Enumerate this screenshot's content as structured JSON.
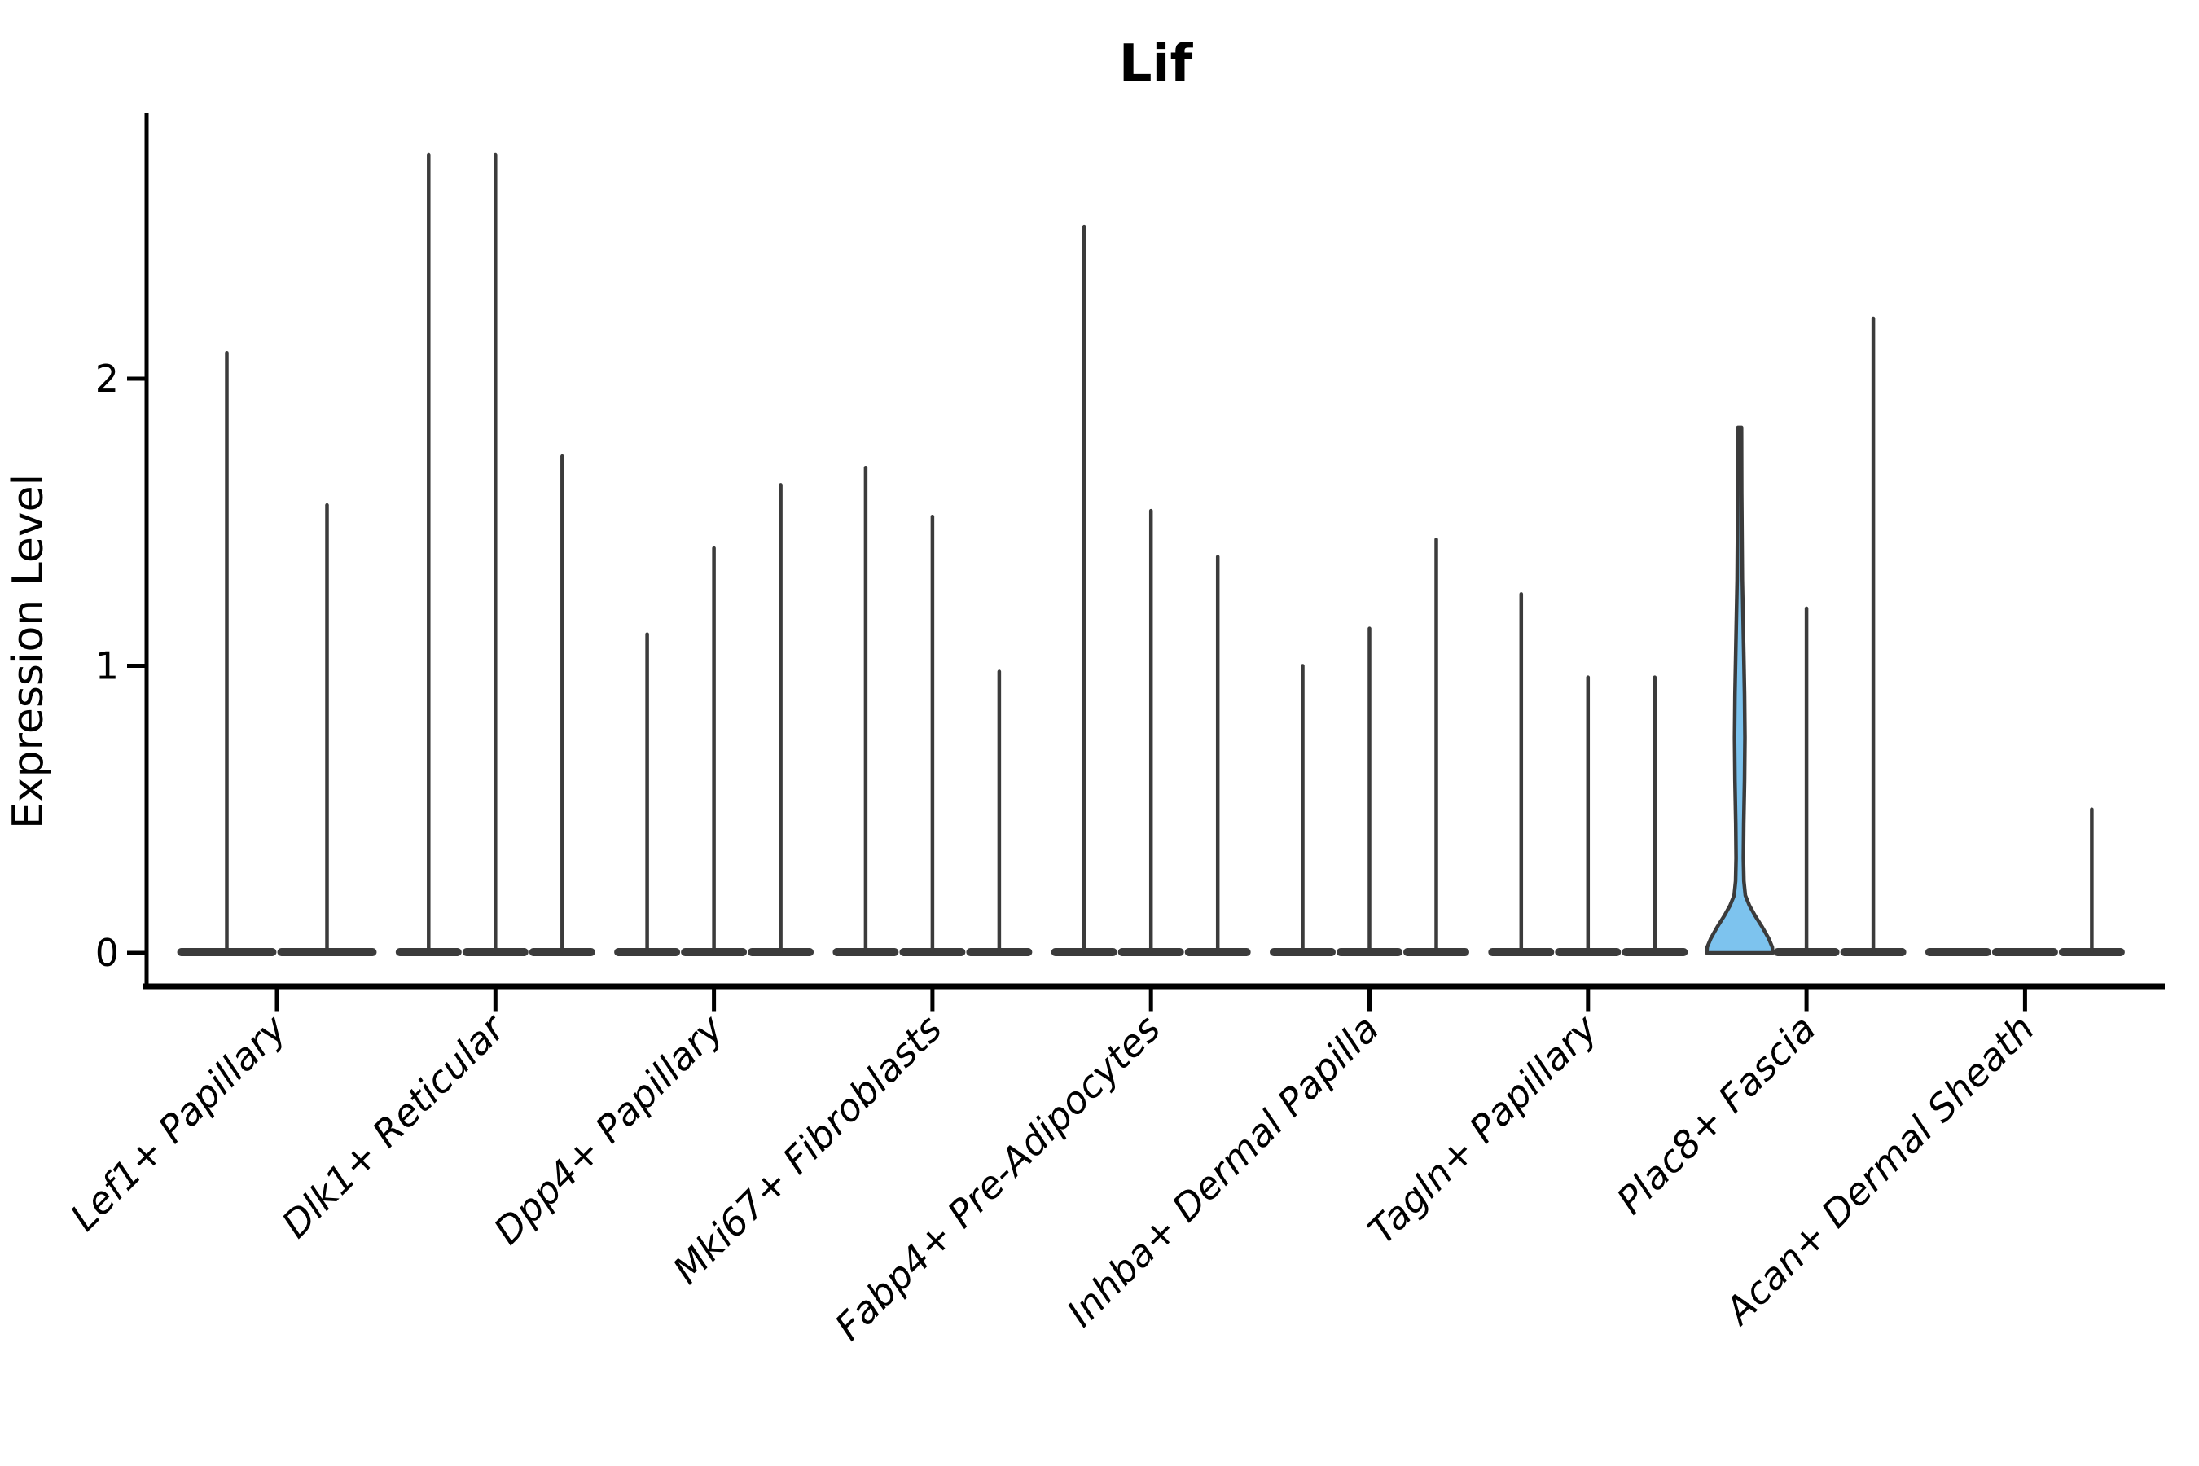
{
  "title": "Lif",
  "colors": {
    "violin_stroke": "#3B3B3B",
    "highlight_fill": "#7DC3EE",
    "axis": "#000000",
    "background": "#ffffff"
  },
  "chart_data": {
    "type": "violin",
    "title": "Lif",
    "xlabel": "",
    "ylabel": "Expression Level",
    "yticks": [
      0,
      1,
      2
    ],
    "ylim": [
      0,
      2.93
    ],
    "grid": false,
    "legend": "none",
    "x_tick_style": "italic, rotated 45deg, anchored at tick",
    "categories": [
      "Lef1+ Papillary",
      "Dlk1+ Reticular",
      "Dpp4+ Papillary",
      "Mki67+ Fibroblasts",
      "Fabp4+ Pre-Adipocytes",
      "Inhba+ Dermal Papilla",
      "Tagln+ Papillary",
      "Plac8+ Fascia",
      "Acan+ Dermal Sheath"
    ],
    "groups": [
      {
        "category": "Lef1+ Papillary",
        "violins": [
          {
            "max": 2.09
          },
          {
            "max": 1.56
          }
        ]
      },
      {
        "category": "Dlk1+ Reticular",
        "violins": [
          {
            "max": 2.78
          },
          {
            "max": 2.78
          },
          {
            "max": 1.73
          }
        ]
      },
      {
        "category": "Dpp4+ Papillary",
        "violins": [
          {
            "max": 1.11
          },
          {
            "max": 1.41
          },
          {
            "max": 1.63
          }
        ]
      },
      {
        "category": "Mki67+ Fibroblasts",
        "violins": [
          {
            "max": 1.69
          },
          {
            "max": 1.52
          },
          {
            "max": 0.98
          }
        ]
      },
      {
        "category": "Fabp4+ Pre-Adipocytes",
        "violins": [
          {
            "max": 2.53
          },
          {
            "max": 1.54
          },
          {
            "max": 1.38
          }
        ]
      },
      {
        "category": "Inhba+ Dermal Papilla",
        "violins": [
          {
            "max": 1.0
          },
          {
            "max": 1.13
          },
          {
            "max": 1.44
          }
        ]
      },
      {
        "category": "Tagln+ Papillary",
        "violins": [
          {
            "max": 1.25
          },
          {
            "max": 0.96
          },
          {
            "max": 0.96
          }
        ]
      },
      {
        "category": "Plac8+ Fascia",
        "violins": [
          {
            "max": 1.83,
            "highlight": true
          },
          {
            "max": 1.2
          },
          {
            "max": 2.21
          }
        ]
      },
      {
        "category": "Acan+ Dermal Sheath",
        "violins": [
          {
            "max": 0
          },
          {
            "max": 0
          },
          {
            "max": 0.5
          }
        ]
      }
    ],
    "highlight_profile_value_halfwidth": [
      [
        1.83,
        2.2
      ],
      [
        1.6,
        2.4
      ],
      [
        1.3,
        3.2
      ],
      [
        1.05,
        5.0
      ],
      [
        0.9,
        6.0
      ],
      [
        0.75,
        6.5
      ],
      [
        0.6,
        6.0
      ],
      [
        0.45,
        5.0
      ],
      [
        0.33,
        4.6
      ],
      [
        0.25,
        5.2
      ],
      [
        0.2,
        7.0
      ],
      [
        0.165,
        12.0
      ],
      [
        0.13,
        19.0
      ],
      [
        0.09,
        28.0
      ],
      [
        0.05,
        36.0
      ],
      [
        0.02,
        40.5
      ],
      [
        0.0,
        41.0
      ]
    ]
  }
}
